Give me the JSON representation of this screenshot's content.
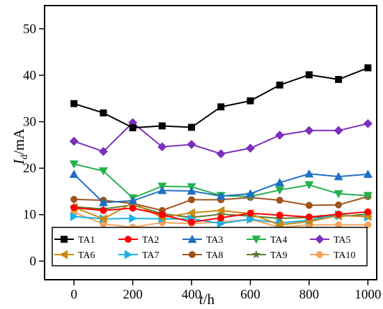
{
  "chart_data": {
    "type": "line",
    "title": "",
    "xlabel": "t/h",
    "ylabel": "Id/mA",
    "ylabel_parts": {
      "var": "I",
      "sub": "d",
      "unit": "/mA"
    },
    "xlabel_parts": {
      "var": "t",
      "unit": "/h"
    },
    "xlim": [
      -100,
      1030
    ],
    "ylim": [
      -4,
      55
    ],
    "xticks": [
      0,
      200,
      400,
      600,
      800,
      1000
    ],
    "yticks": [
      0,
      10,
      20,
      30,
      40,
      50
    ],
    "grid": false,
    "legend_position": "bottom",
    "x": [
      0,
      100,
      200,
      300,
      400,
      500,
      600,
      700,
      800,
      900,
      1000
    ],
    "series": [
      {
        "name": "TA1",
        "color": "#000000",
        "marker": "square",
        "values": [
          33.9,
          31.9,
          28.7,
          29.1,
          28.8,
          33.2,
          34.5,
          37.9,
          40.1,
          39.1,
          41.6
        ]
      },
      {
        "name": "TA2",
        "color": "#ff0000",
        "marker": "circle",
        "values": [
          11.5,
          10.9,
          11.4,
          10.0,
          8.4,
          9.3,
          10.3,
          9.9,
          9.5,
          10.1,
          10.6
        ]
      },
      {
        "name": "TA3",
        "color": "#1f6fc4",
        "marker": "triangle-up",
        "values": [
          18.7,
          12.6,
          13.0,
          15.2,
          15.1,
          14.0,
          14.5,
          16.9,
          18.8,
          18.2,
          18.7
        ]
      },
      {
        "name": "TA4",
        "color": "#22b14c",
        "marker": "triangle-down",
        "values": [
          20.9,
          19.4,
          13.6,
          16.1,
          16.0,
          14.1,
          13.9,
          15.3,
          16.4,
          14.5,
          14.1
        ]
      },
      {
        "name": "TA5",
        "color": "#7b2fbe",
        "marker": "diamond",
        "values": [
          25.8,
          23.6,
          29.8,
          24.6,
          25.1,
          23.1,
          24.3,
          27.1,
          28.1,
          28.1,
          29.6
        ]
      },
      {
        "name": "TA6",
        "color": "#c88a12",
        "marker": "triangle-left",
        "values": [
          11.6,
          9.1,
          12.5,
          9.4,
          10.4,
          10.9,
          10.2,
          7.8,
          8.5,
          9.8,
          9.6
        ]
      },
      {
        "name": "TA7",
        "color": "#1ab0e8",
        "marker": "triangle-right",
        "values": [
          9.6,
          9.1,
          9.2,
          9.1,
          9.1,
          8.1,
          9.0,
          8.2,
          8.8,
          10.0,
          9.5
        ]
      },
      {
        "name": "TA8",
        "color": "#a0521d",
        "marker": "circle",
        "values": [
          13.3,
          13.1,
          12.4,
          10.9,
          13.2,
          13.2,
          13.7,
          13.1,
          12.0,
          12.1,
          13.9
        ]
      },
      {
        "name": "TA9",
        "color": "#5b7a2e",
        "marker": "star",
        "values": [
          11.7,
          11.2,
          12.1,
          10.2,
          9.4,
          10.1,
          9.7,
          9.2,
          9.4,
          9.6,
          10.1
        ]
      },
      {
        "name": "TA10",
        "color": "#f5a35c",
        "marker": "circle",
        "values": [
          10.5,
          8.0,
          7.3,
          8.3,
          8.1,
          8.4,
          9.0,
          7.3,
          7.8,
          7.8,
          7.8
        ]
      }
    ]
  }
}
